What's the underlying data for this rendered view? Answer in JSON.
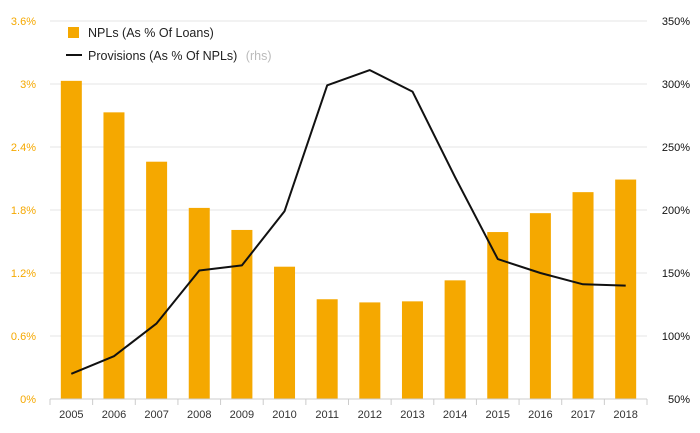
{
  "colors": {
    "bar": "#f5a800",
    "line": "#111111",
    "grid": "#e6e6e6",
    "left_axis_text": "#f5a800",
    "right_axis_text": "#111111"
  },
  "legend": {
    "bar_label": "NPLs (As % Of Loans)",
    "line_label": "Provisions (As % Of NPLs)",
    "line_note": "(rhs)"
  },
  "chart_data": {
    "type": "bar",
    "categories": [
      "2005",
      "2006",
      "2007",
      "2008",
      "2009",
      "2010",
      "2011",
      "2012",
      "2013",
      "2014",
      "2015",
      "2016",
      "2017",
      "2018"
    ],
    "series": [
      {
        "name": "NPLs (As % Of Loans)",
        "type": "bar",
        "axis": "left",
        "values": [
          3.03,
          2.73,
          2.26,
          1.82,
          1.61,
          1.26,
          0.95,
          0.92,
          0.93,
          1.13,
          1.59,
          1.77,
          1.97,
          2.09
        ]
      },
      {
        "name": "Provisions (As % Of NPLs)",
        "type": "line",
        "axis": "right",
        "values": [
          70,
          84,
          110,
          152,
          156,
          199,
          299,
          311,
          294,
          226,
          161,
          150,
          141,
          140
        ]
      }
    ],
    "left_axis": {
      "ylim": [
        0,
        3.6
      ],
      "ticks": [
        0,
        0.6,
        1.2,
        1.8,
        2.4,
        3.0,
        3.6
      ],
      "tick_labels": [
        "0%",
        "0.6%",
        "1.2%",
        "1.8%",
        "2.4%",
        "3%",
        "3.6%"
      ]
    },
    "right_axis": {
      "ylim": [
        50,
        350
      ],
      "ticks": [
        50,
        100,
        150,
        200,
        250,
        300,
        350
      ],
      "tick_labels": [
        "50%",
        "100%",
        "150%",
        "200%",
        "250%",
        "300%",
        "350%"
      ]
    },
    "grid": true,
    "legend_position": "top-left"
  }
}
